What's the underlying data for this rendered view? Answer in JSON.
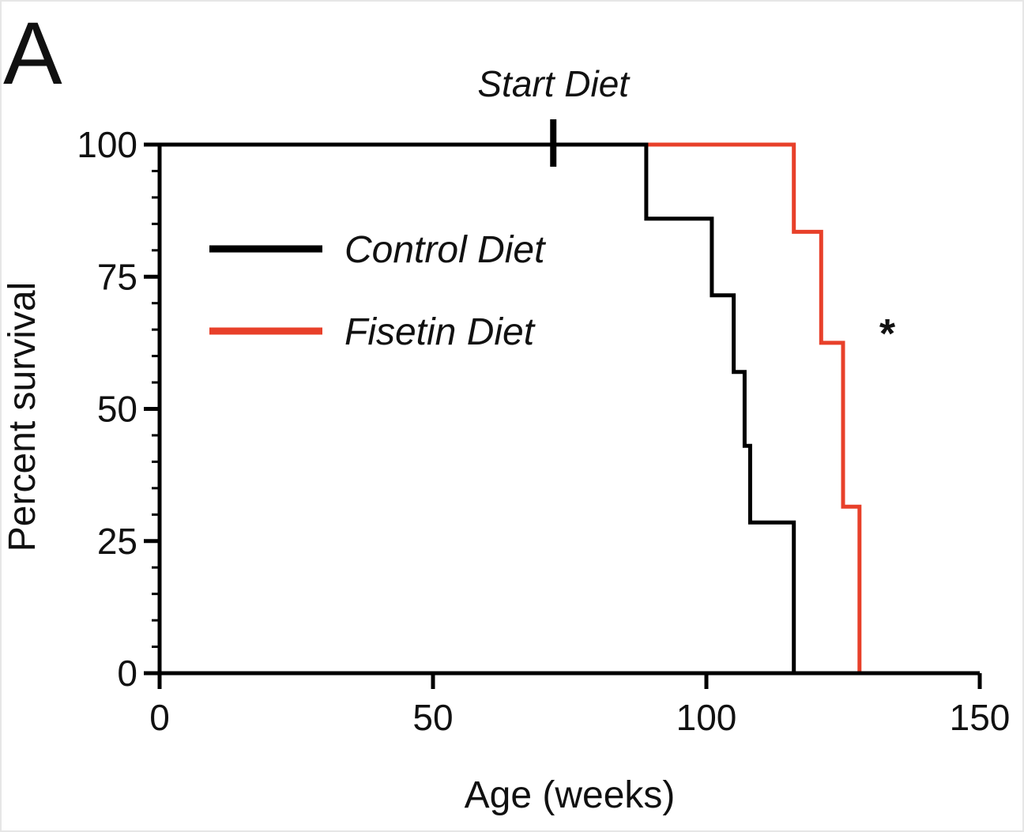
{
  "panel_label": "A",
  "chart_data": {
    "type": "line",
    "step": true,
    "title": "",
    "xlabel": "Age (weeks)",
    "ylabel": "Percent survival",
    "xlim": [
      0,
      150
    ],
    "ylim": [
      0,
      100
    ],
    "xticks": [
      0,
      50,
      100,
      150
    ],
    "yticks": [
      0,
      25,
      50,
      75,
      100
    ],
    "grid": false,
    "legend_position": "upper-left",
    "series": [
      {
        "name": "Control Diet",
        "color": "#000000",
        "x": [
          0,
          89,
          89,
          101,
          101,
          105,
          105,
          107,
          107,
          108,
          108,
          109,
          109,
          116,
          116
        ],
        "y": [
          100,
          100,
          86,
          86,
          71.5,
          71.5,
          57,
          57,
          43,
          43,
          28.5,
          28.5,
          28.5,
          28.5,
          0
        ]
      },
      {
        "name": "Fisetin Diet",
        "color": "#e8402a",
        "x": [
          89,
          116,
          116,
          121,
          121,
          125,
          125,
          128,
          128
        ],
        "y": [
          100,
          100,
          83.5,
          83.5,
          62.5,
          62.5,
          31.5,
          31.5,
          0
        ]
      }
    ],
    "annotations": [
      {
        "text": "Start Diet",
        "x": 72,
        "marker": "tick"
      },
      {
        "text": "*",
        "near_series": "Fisetin Diet"
      }
    ]
  }
}
